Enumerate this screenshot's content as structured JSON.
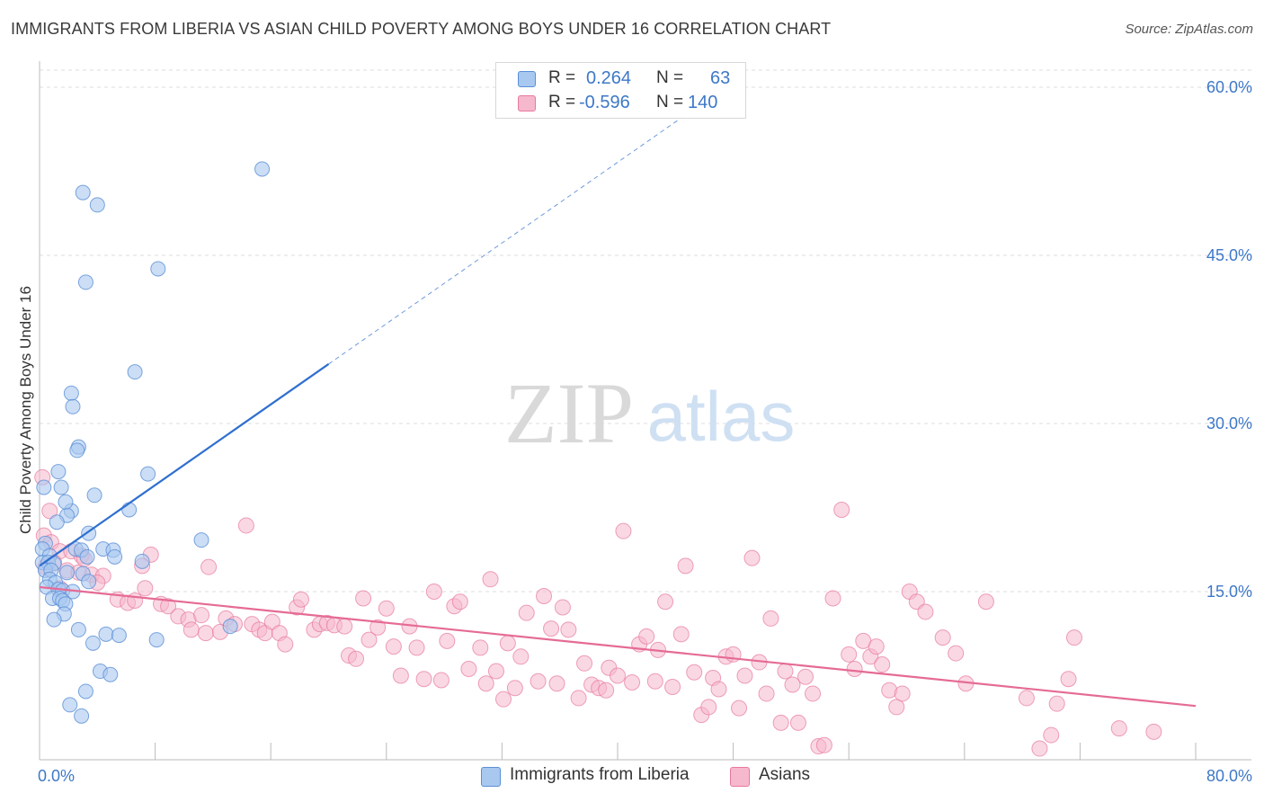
{
  "title": "IMMIGRANTS FROM LIBERIA VS ASIAN CHILD POVERTY AMONG BOYS UNDER 16 CORRELATION CHART",
  "source": "Source: ZipAtlas.com",
  "watermark": {
    "zip": "ZIP",
    "atlas": "atlas"
  },
  "colors": {
    "blue_fill": "#a8c8f0",
    "blue_stroke": "#5b8fd6",
    "blue_line": "#2f6fcf",
    "pink_fill": "#f6b8cc",
    "pink_stroke": "#e7799d",
    "pink_line": "#e56b95",
    "grid": "#dddddd",
    "tick_text": "#3d78c8"
  },
  "legend": {
    "rows": [
      {
        "r_label": "R =",
        "r_value": "0.264",
        "n_label": "N =",
        "n_value": "63"
      },
      {
        "r_label": "R =",
        "r_value": "-0.596",
        "n_label": "N =",
        "n_value": "140"
      }
    ]
  },
  "bottom_legend": [
    {
      "label": "Immigrants from Liberia"
    },
    {
      "label": "Asians"
    }
  ],
  "chart_data": {
    "type": "scatter",
    "title": "IMMIGRANTS FROM LIBERIA VS ASIAN CHILD POVERTY AMONG BOYS UNDER 16 CORRELATION CHART",
    "xlabel": "",
    "ylabel": "Child Poverty Among Boys Under 16",
    "xlim": [
      0,
      80
    ],
    "ylim": [
      0,
      62
    ],
    "x_tick_labels": [
      "0.0%",
      "80.0%"
    ],
    "y_ticks": [
      15,
      30,
      45,
      60
    ],
    "y_tick_labels": [
      "15.0%",
      "30.0%",
      "45.0%",
      "60.0%"
    ],
    "grid": true,
    "legend_placement": "top-center",
    "series": [
      {
        "name": "Immigrants from Liberia",
        "r": 0.264,
        "n": 63,
        "trend": {
          "x": [
            0,
            20
          ],
          "y": [
            17.3,
            35.3
          ],
          "dashed_to": [
            45,
            57.8
          ]
        },
        "points": [
          [
            15.4,
            52.7
          ],
          [
            3.0,
            50.6
          ],
          [
            4.0,
            49.5
          ],
          [
            8.2,
            43.8
          ],
          [
            3.2,
            42.6
          ],
          [
            6.6,
            34.6
          ],
          [
            2.2,
            32.7
          ],
          [
            2.3,
            31.5
          ],
          [
            2.7,
            27.9
          ],
          [
            2.6,
            27.6
          ],
          [
            1.3,
            25.7
          ],
          [
            7.5,
            25.5
          ],
          [
            0.3,
            24.3
          ],
          [
            1.5,
            24.3
          ],
          [
            3.8,
            23.6
          ],
          [
            6.2,
            22.3
          ],
          [
            2.2,
            22.2
          ],
          [
            1.9,
            21.8
          ],
          [
            1.8,
            23.0
          ],
          [
            1.2,
            21.2
          ],
          [
            3.4,
            20.2
          ],
          [
            11.2,
            19.6
          ],
          [
            0.4,
            19.3
          ],
          [
            0.2,
            18.8
          ],
          [
            0.7,
            18.2
          ],
          [
            2.5,
            18.8
          ],
          [
            2.9,
            18.7
          ],
          [
            4.4,
            18.8
          ],
          [
            5.1,
            18.7
          ],
          [
            5.2,
            18.1
          ],
          [
            3.3,
            18.1
          ],
          [
            7.1,
            17.7
          ],
          [
            0.2,
            17.6
          ],
          [
            0.6,
            17.6
          ],
          [
            1.0,
            17.5
          ],
          [
            0.4,
            16.9
          ],
          [
            0.8,
            16.9
          ],
          [
            1.9,
            16.7
          ],
          [
            3.0,
            16.6
          ],
          [
            0.7,
            16.1
          ],
          [
            1.1,
            15.8
          ],
          [
            3.4,
            15.9
          ],
          [
            0.5,
            15.4
          ],
          [
            1.3,
            15.2
          ],
          [
            1.6,
            15.1
          ],
          [
            2.3,
            15.0
          ],
          [
            0.9,
            14.4
          ],
          [
            1.4,
            14.4
          ],
          [
            1.6,
            14.2
          ],
          [
            1.8,
            13.9
          ],
          [
            1.7,
            13.0
          ],
          [
            1.0,
            12.5
          ],
          [
            2.7,
            11.6
          ],
          [
            13.2,
            11.9
          ],
          [
            4.6,
            11.2
          ],
          [
            5.5,
            11.1
          ],
          [
            8.1,
            10.7
          ],
          [
            3.7,
            10.4
          ],
          [
            4.2,
            7.9
          ],
          [
            4.9,
            7.6
          ],
          [
            3.2,
            6.1
          ],
          [
            2.1,
            4.9
          ],
          [
            2.9,
            3.9
          ]
        ]
      },
      {
        "name": "Asians",
        "r": -0.596,
        "n": 140,
        "trend": {
          "x": [
            0,
            80
          ],
          "y": [
            15.4,
            4.8
          ]
        },
        "points": [
          [
            0.2,
            25.2
          ],
          [
            0.7,
            22.2
          ],
          [
            0.3,
            20.0
          ],
          [
            0.8,
            19.4
          ],
          [
            1.4,
            18.6
          ],
          [
            2.2,
            18.6
          ],
          [
            2.9,
            18.2
          ],
          [
            3.1,
            17.9
          ],
          [
            1.0,
            17.6
          ],
          [
            0.4,
            17.2
          ],
          [
            1.9,
            16.9
          ],
          [
            3.6,
            16.5
          ],
          [
            4.4,
            16.4
          ],
          [
            4.0,
            15.8
          ],
          [
            1.4,
            15.3
          ],
          [
            2.7,
            16.7
          ],
          [
            7.7,
            18.3
          ],
          [
            7.1,
            17.3
          ],
          [
            11.7,
            17.2
          ],
          [
            14.3,
            20.9
          ],
          [
            7.3,
            15.3
          ],
          [
            5.4,
            14.3
          ],
          [
            6.1,
            14.0
          ],
          [
            6.6,
            14.2
          ],
          [
            8.4,
            13.9
          ],
          [
            8.9,
            13.7
          ],
          [
            9.6,
            12.8
          ],
          [
            10.3,
            12.5
          ],
          [
            10.5,
            11.6
          ],
          [
            11.2,
            12.9
          ],
          [
            11.5,
            11.3
          ],
          [
            12.5,
            11.4
          ],
          [
            12.9,
            12.6
          ],
          [
            13.5,
            12.1
          ],
          [
            14.7,
            12.1
          ],
          [
            15.2,
            11.6
          ],
          [
            15.6,
            11.3
          ],
          [
            16.1,
            12.3
          ],
          [
            16.6,
            11.3
          ],
          [
            17.0,
            10.3
          ],
          [
            17.8,
            13.6
          ],
          [
            18.1,
            14.3
          ],
          [
            19.0,
            11.6
          ],
          [
            19.4,
            12.1
          ],
          [
            19.9,
            12.2
          ],
          [
            20.4,
            12.0
          ],
          [
            21.1,
            11.9
          ],
          [
            21.4,
            9.3
          ],
          [
            21.9,
            9.0
          ],
          [
            22.4,
            14.4
          ],
          [
            22.8,
            10.7
          ],
          [
            23.4,
            11.8
          ],
          [
            24.0,
            13.5
          ],
          [
            24.5,
            10.1
          ],
          [
            25.0,
            7.5
          ],
          [
            25.6,
            11.9
          ],
          [
            26.1,
            10.0
          ],
          [
            26.6,
            7.2
          ],
          [
            27.3,
            15.0
          ],
          [
            27.8,
            7.1
          ],
          [
            28.2,
            10.6
          ],
          [
            28.7,
            13.7
          ],
          [
            29.1,
            14.1
          ],
          [
            29.7,
            8.1
          ],
          [
            30.5,
            10.0
          ],
          [
            30.9,
            6.8
          ],
          [
            31.2,
            16.1
          ],
          [
            31.6,
            7.9
          ],
          [
            32.1,
            5.4
          ],
          [
            32.4,
            10.4
          ],
          [
            32.9,
            6.4
          ],
          [
            33.3,
            9.2
          ],
          [
            33.7,
            13.1
          ],
          [
            34.5,
            7.0
          ],
          [
            34.9,
            14.6
          ],
          [
            35.4,
            11.7
          ],
          [
            35.8,
            6.8
          ],
          [
            36.2,
            13.6
          ],
          [
            36.6,
            11.6
          ],
          [
            37.3,
            5.5
          ],
          [
            37.7,
            8.6
          ],
          [
            38.2,
            6.7
          ],
          [
            38.7,
            6.4
          ],
          [
            39.2,
            6.2
          ],
          [
            39.4,
            8.2
          ],
          [
            40.0,
            7.5
          ],
          [
            40.4,
            20.4
          ],
          [
            41.0,
            6.9
          ],
          [
            41.5,
            10.3
          ],
          [
            42.0,
            11.0
          ],
          [
            42.6,
            7.0
          ],
          [
            42.8,
            9.8
          ],
          [
            43.3,
            14.1
          ],
          [
            43.8,
            6.5
          ],
          [
            44.4,
            11.2
          ],
          [
            44.7,
            17.3
          ],
          [
            45.3,
            7.8
          ],
          [
            45.8,
            4.0
          ],
          [
            46.3,
            4.7
          ],
          [
            46.6,
            7.3
          ],
          [
            47.0,
            6.3
          ],
          [
            47.5,
            9.2
          ],
          [
            48.0,
            9.4
          ],
          [
            48.4,
            4.6
          ],
          [
            48.8,
            7.5
          ],
          [
            49.3,
            18.0
          ],
          [
            49.8,
            8.7
          ],
          [
            50.3,
            5.9
          ],
          [
            50.6,
            12.6
          ],
          [
            51.3,
            3.3
          ],
          [
            51.6,
            7.9
          ],
          [
            52.1,
            6.7
          ],
          [
            52.5,
            3.3
          ],
          [
            53.0,
            7.4
          ],
          [
            53.5,
            5.9
          ],
          [
            53.9,
            1.2
          ],
          [
            54.3,
            1.3
          ],
          [
            54.9,
            14.4
          ],
          [
            55.5,
            22.3
          ],
          [
            56.0,
            9.4
          ],
          [
            56.4,
            8.1
          ],
          [
            57.0,
            10.6
          ],
          [
            57.5,
            9.2
          ],
          [
            57.9,
            10.1
          ],
          [
            58.3,
            8.5
          ],
          [
            58.8,
            6.2
          ],
          [
            59.3,
            4.7
          ],
          [
            59.7,
            5.9
          ],
          [
            60.2,
            15.0
          ],
          [
            60.7,
            14.1
          ],
          [
            61.3,
            13.2
          ],
          [
            62.5,
            10.9
          ],
          [
            63.4,
            9.5
          ],
          [
            64.1,
            6.8
          ],
          [
            65.5,
            14.1
          ],
          [
            68.3,
            5.5
          ],
          [
            69.2,
            1.0
          ],
          [
            70.0,
            2.2
          ],
          [
            70.4,
            5.0
          ],
          [
            71.2,
            7.2
          ],
          [
            71.6,
            10.9
          ],
          [
            74.7,
            2.8
          ],
          [
            77.1,
            2.5
          ]
        ]
      }
    ]
  }
}
